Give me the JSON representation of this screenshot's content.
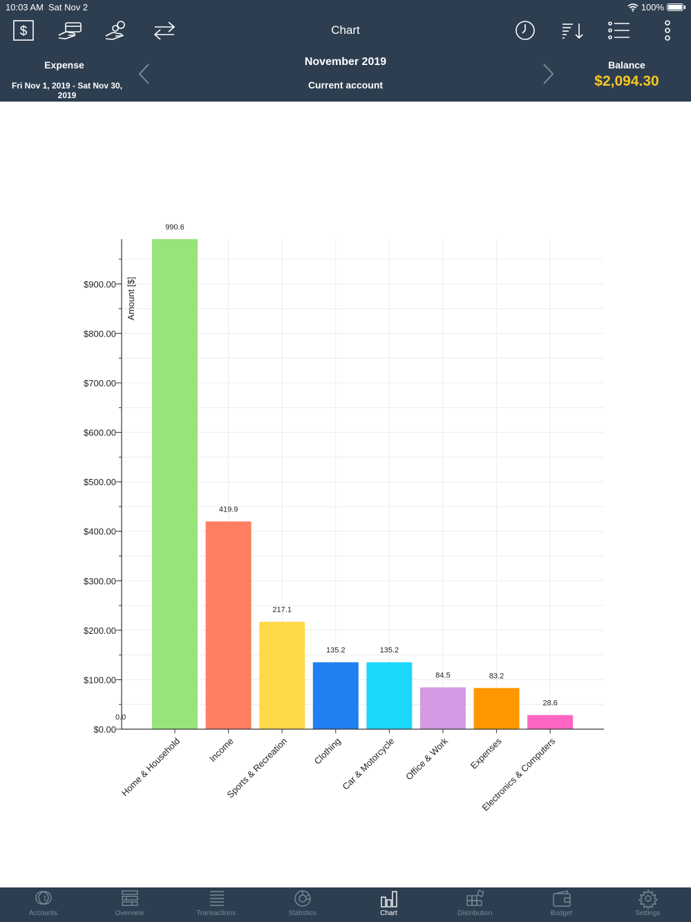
{
  "status_bar": {
    "time": "10:03 AM",
    "date": "Sat Nov 2",
    "battery": "100%"
  },
  "toolbar": {
    "title": "Chart",
    "left_icons": [
      "dollar-box-icon",
      "hand-card-icon",
      "hand-coins-icon",
      "transfer-arrows-icon"
    ],
    "right_icons": [
      "clock-icon",
      "sort-icon",
      "list-icon",
      "more-vertical-icon"
    ]
  },
  "header": {
    "left_label": "Expense",
    "date_range": "Fri Nov 1, 2019 - Sat Nov 30, 2019",
    "month": "November 2019",
    "account": "Current account",
    "balance_label": "Balance",
    "balance_value": "$2,094.30"
  },
  "colors": {
    "header_bg": "#2d3e50",
    "balance": "#f7c71e",
    "tab_inactive": "#7b8a99",
    "tab_active": "#ffffff"
  },
  "chart_data": {
    "type": "bar",
    "ylabel": "Amount [$]",
    "xlabel": "",
    "ylim": [
      0,
      990.6
    ],
    "yticks": [
      {
        "value": 0,
        "label": "$0.00"
      },
      {
        "value": 100,
        "label": "$100.00"
      },
      {
        "value": 200,
        "label": "$200.00"
      },
      {
        "value": 300,
        "label": "$300.00"
      },
      {
        "value": 400,
        "label": "$400.00"
      },
      {
        "value": 500,
        "label": "$500.00"
      },
      {
        "value": 600,
        "label": "$600.00"
      },
      {
        "value": 700,
        "label": "$700.00"
      },
      {
        "value": 800,
        "label": "$800.00"
      },
      {
        "value": 900,
        "label": "$900.00"
      }
    ],
    "origin_label": "0.0",
    "categories": [
      "Home & Household",
      "Income",
      "Sports & Recreation",
      "Clothing",
      "Car & Motorcycle",
      "Office & Work",
      "Expenses",
      "Electronics & Computers"
    ],
    "values": [
      990.6,
      419.9,
      217.1,
      135.2,
      135.2,
      84.5,
      83.2,
      28.6
    ],
    "value_labels": [
      "990.6",
      "419.9",
      "217.1",
      "135.2",
      "135.2",
      "84.5",
      "83.2",
      "28.6"
    ],
    "colors": [
      "#98e47a",
      "#fe7e61",
      "#fed948",
      "#1f80f2",
      "#1bd8fb",
      "#d69ae5",
      "#fe9700",
      "#fe66c3"
    ],
    "grid": true
  },
  "tabs": [
    {
      "label": "Accounts",
      "icon": "coins-icon",
      "active": false
    },
    {
      "label": "Overview",
      "icon": "overview-icon",
      "active": false
    },
    {
      "label": "Transactions",
      "icon": "transactions-icon",
      "active": false
    },
    {
      "label": "Statistics",
      "icon": "statistics-icon",
      "active": false
    },
    {
      "label": "Chart",
      "icon": "bar-chart-icon",
      "active": true
    },
    {
      "label": "Distribution",
      "icon": "distribution-icon",
      "active": false
    },
    {
      "label": "Budget",
      "icon": "wallet-icon",
      "active": false
    },
    {
      "label": "Settings",
      "icon": "gear-icon",
      "active": false
    }
  ]
}
